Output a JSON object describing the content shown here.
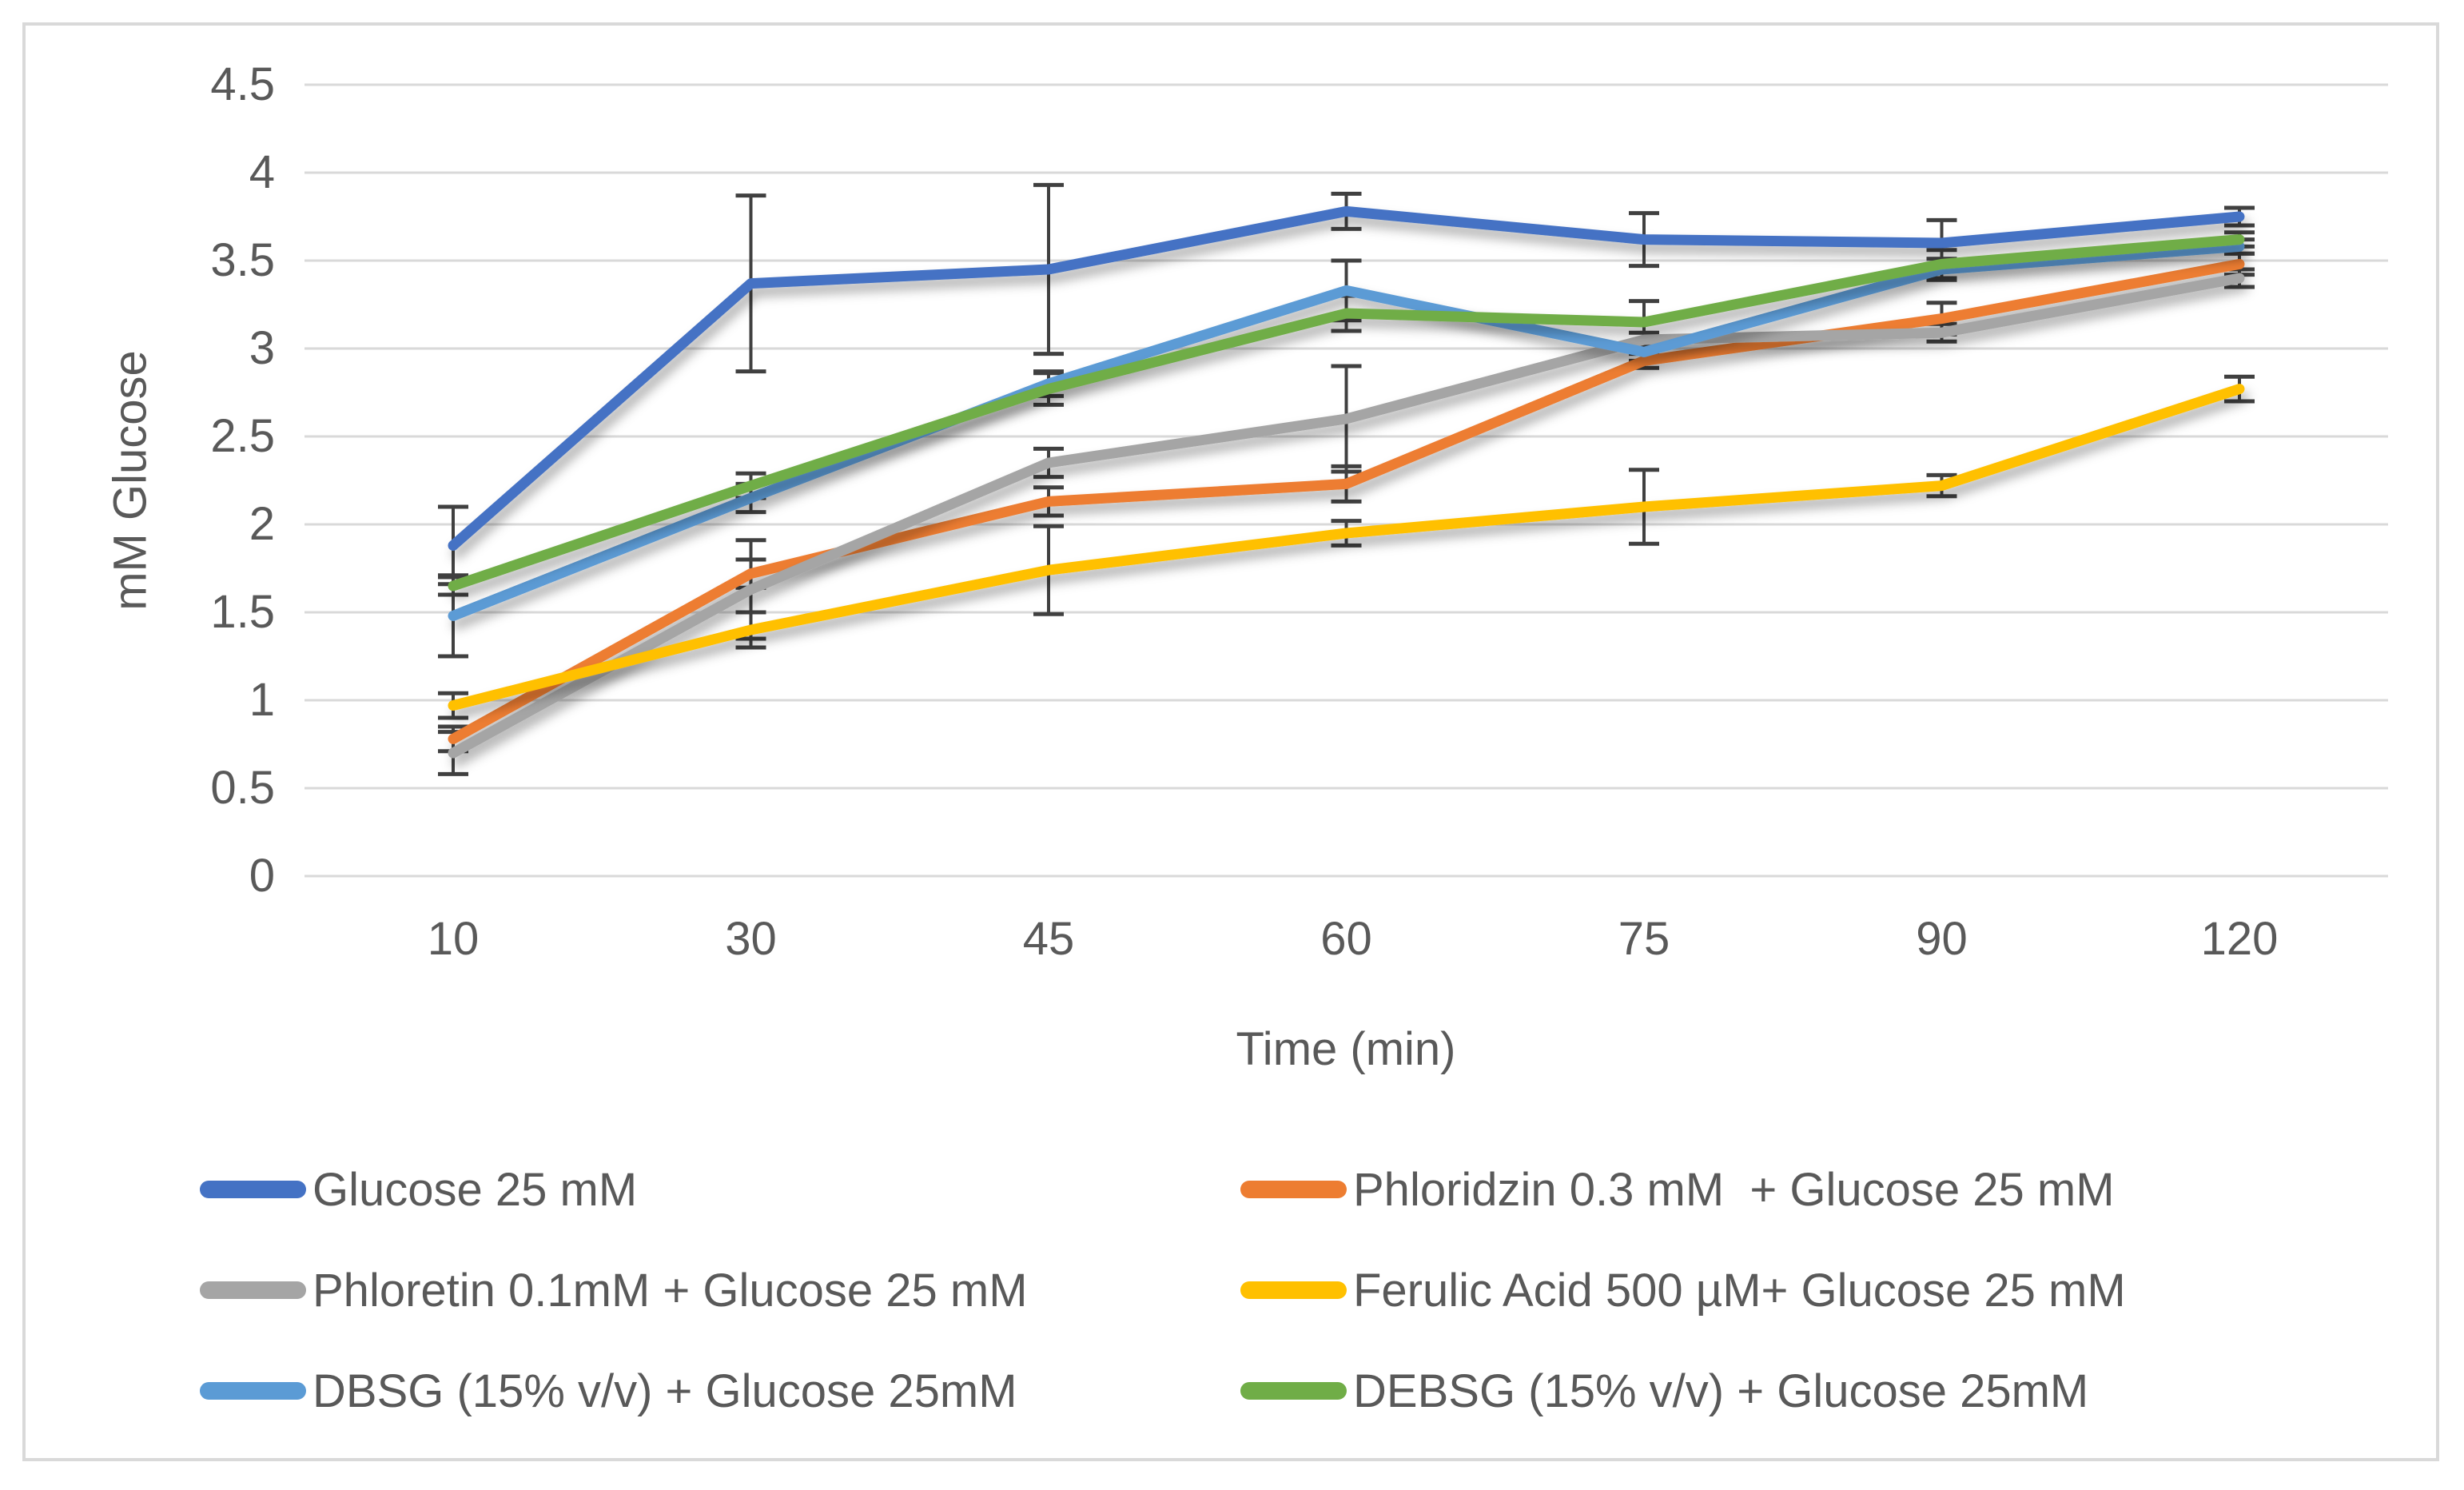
{
  "figure": {
    "background": "#FFFFFF",
    "border_color": "#D9D9D9"
  },
  "chart_data": {
    "type": "line",
    "title": "",
    "xlabel": "Time (min)",
    "ylabel": "mM Glucose",
    "categories": [
      "10",
      "30",
      "45",
      "60",
      "75",
      "90",
      "120"
    ],
    "y_ticks": [
      "4.5",
      "4",
      "3.5",
      "3",
      "2.5",
      "2",
      "1.5",
      "1",
      "0.5",
      "0"
    ],
    "ylim": [
      0,
      4.5
    ],
    "grid": "horizontal",
    "gridline_color": "#D9D9D9",
    "axis_text_color": "#595959",
    "error_bar_color": "#404040",
    "legend_position": "bottom-two-columns",
    "legend": {
      "columns": [
        [
          0,
          2,
          4
        ],
        [
          1,
          3,
          5
        ]
      ]
    },
    "series": [
      {
        "name": "Glucose 25 mM",
        "color": "#4472C4",
        "values": [
          1.88,
          3.37,
          3.45,
          3.78,
          3.62,
          3.6,
          3.75
        ],
        "errors": [
          0.22,
          0.5,
          0.48,
          0.1,
          0.15,
          0.13,
          0.05
        ]
      },
      {
        "name": "Phloridzin 0.3 mM  + Glucose 25 mM",
        "color": "#ED7D31",
        "values": [
          0.78,
          1.72,
          2.13,
          2.23,
          2.93,
          3.17,
          3.48
        ],
        "errors": [
          0.07,
          0.08,
          0.08,
          0.1,
          0.04,
          0.09,
          0.06
        ]
      },
      {
        "name": "Phloretin 0.1mM + Glucose 25 mM",
        "color": "#A5A5A5",
        "values": [
          0.7,
          1.63,
          2.35,
          2.6,
          3.05,
          3.09,
          3.4
        ],
        "errors": [
          0.12,
          0.28,
          0.08,
          0.3,
          0.04,
          0.05,
          0.05
        ]
      },
      {
        "name": "Ferulic Acid 500 µM+ Glucose 25 mM",
        "color": "#FFC000",
        "values": [
          0.97,
          1.4,
          1.74,
          1.95,
          2.1,
          2.22,
          2.77
        ],
        "errors": [
          0.07,
          0.1,
          0.25,
          0.07,
          0.21,
          0.06,
          0.07
        ]
      },
      {
        "name": "DBSG (15% v/v) + Glucose 25mM",
        "color": "#5B9BD5",
        "values": [
          1.48,
          2.15,
          2.8,
          3.33,
          2.98,
          3.45,
          3.58
        ],
        "errors": [
          0.23,
          0.08,
          0.07,
          0.17,
          0.05,
          0.06,
          0.04
        ]
      },
      {
        "name": "DEBSG (15% v/v) + Glucose 25mM",
        "color": "#70AD47",
        "values": [
          1.65,
          2.22,
          2.77,
          3.2,
          3.15,
          3.48,
          3.62
        ],
        "errors": [
          0.05,
          0.07,
          0.09,
          0.1,
          0.12,
          0.08,
          0.04
        ]
      }
    ]
  }
}
